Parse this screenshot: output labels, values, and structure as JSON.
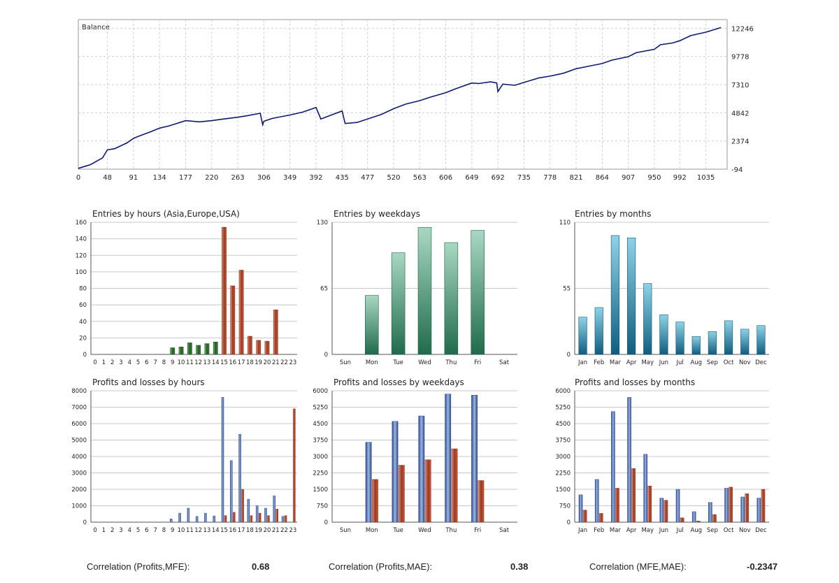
{
  "colors": {
    "balance_line": "#0d1a6e",
    "green": "#1e5e1e",
    "green_light": "#6ea66e",
    "red": "#9c3820",
    "red_light": "#d9826a",
    "teal_top": "#a9d8c3",
    "teal_bottom": "#1f6b4c",
    "cyan_top": "#8fd2e6",
    "cyan_bottom": "#0f5d7f",
    "blue": "#3456a0",
    "blue_light": "#9fb6e0",
    "grid": "#c8c8c8",
    "dash_grid": "#cfcfcf"
  },
  "chart_data": [
    {
      "id": "balance",
      "type": "line",
      "title": "Balance",
      "x_ticks": [
        "0",
        "48",
        "91",
        "134",
        "177",
        "220",
        "263",
        "306",
        "349",
        "392",
        "435",
        "477",
        "520",
        "563",
        "606",
        "649",
        "692",
        "735",
        "778",
        "821",
        "864",
        "907",
        "950",
        "992",
        "1035"
      ],
      "y_ticks": [
        "12246",
        "9778",
        "7310",
        "4842",
        "2374",
        "-94"
      ],
      "xlim": [
        0,
        1070
      ],
      "ylim": [
        -94,
        13000
      ],
      "x": [
        0,
        20,
        40,
        48,
        60,
        80,
        91,
        100,
        120,
        134,
        150,
        177,
        200,
        220,
        240,
        263,
        280,
        300,
        304,
        306,
        320,
        349,
        370,
        392,
        400,
        420,
        435,
        440,
        460,
        477,
        500,
        520,
        540,
        563,
        580,
        606,
        620,
        649,
        660,
        680,
        690,
        692,
        700,
        720,
        735,
        760,
        778,
        800,
        821,
        840,
        864,
        880,
        907,
        920,
        950,
        960,
        980,
        992,
        1010,
        1035,
        1060
      ],
      "y": [
        -20,
        300,
        900,
        1600,
        1700,
        2200,
        2600,
        2800,
        3200,
        3500,
        3700,
        4150,
        4050,
        4150,
        4300,
        4450,
        4600,
        4800,
        3800,
        4100,
        4350,
        4650,
        4900,
        5300,
        4300,
        4700,
        5000,
        3900,
        4000,
        4300,
        4700,
        5200,
        5600,
        5900,
        6200,
        6600,
        6900,
        7450,
        7400,
        7550,
        7450,
        6700,
        7350,
        7250,
        7500,
        7900,
        8050,
        8300,
        8700,
        8900,
        9150,
        9450,
        9750,
        10100,
        10400,
        10800,
        10950,
        11150,
        11600,
        11900,
        12300
      ]
    },
    {
      "id": "entries-hours",
      "type": "bar",
      "title": "Entries by hours (Asia,Europe,USA)",
      "categories": [
        "0",
        "1",
        "2",
        "3",
        "4",
        "5",
        "6",
        "7",
        "8",
        "9",
        "10",
        "11",
        "12",
        "13",
        "14",
        "15",
        "16",
        "17",
        "18",
        "19",
        "20",
        "21",
        "22",
        "23"
      ],
      "values": [
        0,
        0,
        0,
        0,
        0,
        0,
        0,
        0,
        0,
        8,
        9,
        14,
        11,
        13,
        15,
        154,
        83,
        102,
        22,
        17,
        16,
        54,
        0,
        0
      ],
      "y_ticks": [
        0,
        20,
        40,
        60,
        80,
        100,
        120,
        140,
        160
      ],
      "ylim": [
        0,
        160
      ]
    },
    {
      "id": "entries-weekdays",
      "type": "bar",
      "title": "Entries by weekdays",
      "categories": [
        "Sun",
        "Mon",
        "Tue",
        "Wed",
        "Thu",
        "Fri",
        "Sat"
      ],
      "values": [
        0,
        58,
        100,
        125,
        110,
        122,
        0
      ],
      "y_ticks": [
        0,
        65,
        130
      ],
      "ylim": [
        0,
        130
      ]
    },
    {
      "id": "entries-months",
      "type": "bar",
      "title": "Entries by months",
      "categories": [
        "Jan",
        "Feb",
        "Mar",
        "Apr",
        "May",
        "Jun",
        "Jul",
        "Aug",
        "Sep",
        "Oct",
        "Nov",
        "Dec"
      ],
      "values": [
        31,
        39,
        99,
        97,
        59,
        33,
        27,
        15,
        19,
        28,
        21,
        24
      ],
      "y_ticks": [
        0,
        55,
        110
      ],
      "ylim": [
        0,
        110
      ]
    },
    {
      "id": "pl-hours",
      "type": "bar",
      "title": "Profits and losses by hours",
      "categories": [
        "0",
        "1",
        "2",
        "3",
        "4",
        "5",
        "6",
        "7",
        "8",
        "9",
        "10",
        "11",
        "12",
        "13",
        "14",
        "15",
        "16",
        "17",
        "18",
        "19",
        "20",
        "21",
        "22",
        "23"
      ],
      "series": [
        {
          "name": "Profits",
          "values": [
            0,
            0,
            0,
            0,
            0,
            0,
            0,
            0,
            0,
            200,
            550,
            850,
            350,
            550,
            380,
            7600,
            3750,
            5350,
            1400,
            1000,
            850,
            1600,
            350,
            0
          ]
        },
        {
          "name": "Losses",
          "values": [
            0,
            0,
            0,
            0,
            0,
            0,
            0,
            0,
            0,
            0,
            0,
            0,
            0,
            0,
            0,
            400,
            600,
            2000,
            400,
            550,
            400,
            800,
            400,
            6900
          ]
        }
      ],
      "y_ticks": [
        0,
        1000,
        2000,
        3000,
        4000,
        5000,
        6000,
        7000,
        8000
      ],
      "ylim": [
        0,
        8000
      ]
    },
    {
      "id": "pl-weekdays",
      "type": "bar",
      "title": "Profits and losses by weekdays",
      "categories": [
        "Sun",
        "Mon",
        "Tue",
        "Wed",
        "Thu",
        "Fri",
        "Sat"
      ],
      "series": [
        {
          "name": "Profits",
          "values": [
            0,
            3650,
            4600,
            4850,
            5850,
            5800,
            0
          ]
        },
        {
          "name": "Losses",
          "values": [
            0,
            1950,
            2600,
            2850,
            3350,
            1900,
            0
          ]
        }
      ],
      "y_ticks": [
        0,
        750,
        1500,
        2250,
        3000,
        3750,
        4500,
        5250,
        6000
      ],
      "ylim": [
        0,
        6000
      ]
    },
    {
      "id": "pl-months",
      "type": "bar",
      "title": "Profits and losses by months",
      "categories": [
        "Jan",
        "Feb",
        "Mar",
        "Apr",
        "May",
        "Jun",
        "Jul",
        "Aug",
        "Sep",
        "Oct",
        "Nov",
        "Dec"
      ],
      "series": [
        {
          "name": "Profits",
          "values": [
            1250,
            1950,
            5050,
            5700,
            3100,
            1100,
            1500,
            480,
            900,
            1550,
            1150,
            1100
          ]
        },
        {
          "name": "Losses",
          "values": [
            550,
            400,
            1550,
            2450,
            1650,
            1000,
            200,
            50,
            350,
            1600,
            1300,
            1500
          ]
        }
      ],
      "y_ticks": [
        0,
        750,
        1500,
        2250,
        3000,
        3750,
        4500,
        5250,
        6000
      ],
      "ylim": [
        0,
        6000
      ]
    }
  ],
  "correlations": [
    {
      "label": "Correlation (Profits,MFE):",
      "value": "0.68"
    },
    {
      "label": "Correlation (Profits,MAE):",
      "value": "0.38"
    },
    {
      "label": "Correlation (MFE,MAE):",
      "value": "-0.2347"
    }
  ]
}
